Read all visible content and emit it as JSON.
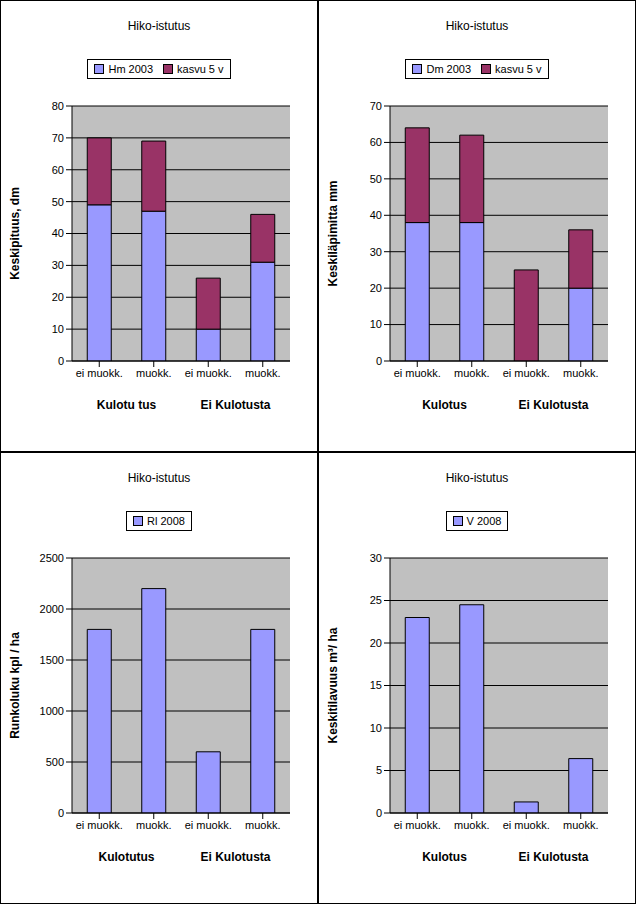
{
  "chart_data": [
    {
      "type": "bar",
      "title": "Hiko-istutus",
      "categories": [
        "ei muokk.",
        "muokk.",
        "ei muokk.",
        "muokk."
      ],
      "category_groups": [
        "Kulotu tus",
        "Ei Kulotusta"
      ],
      "ylabel": "Keskipituus, dm",
      "ylim": [
        0,
        80
      ],
      "yticks": [
        0,
        10,
        20,
        30,
        40,
        50,
        60,
        70,
        80
      ],
      "stacked": true,
      "grid": true,
      "legend": "top",
      "series": [
        {
          "name": "Hm 2003",
          "color": "#9999FF",
          "values": [
            49,
            47,
            10,
            31
          ]
        },
        {
          "name": "kasvu 5 v",
          "color": "#993366",
          "values": [
            21,
            22,
            16,
            15
          ]
        }
      ]
    },
    {
      "type": "bar",
      "title": "Hiko-istutus",
      "categories": [
        "ei muokk.",
        "muokk.",
        "ei muokk.",
        "muokk."
      ],
      "category_groups": [
        "Kulotus",
        "Ei Kulotusta"
      ],
      "ylabel": "Keskiläpimitta mm",
      "ylim": [
        0,
        70
      ],
      "yticks": [
        0,
        10,
        20,
        30,
        40,
        50,
        60,
        70
      ],
      "stacked": true,
      "grid": true,
      "legend": "top",
      "series": [
        {
          "name": "Dm 2003",
          "color": "#9999FF",
          "values": [
            38,
            38,
            0,
            20
          ]
        },
        {
          "name": "kasvu 5 v",
          "color": "#993366",
          "values": [
            26,
            24,
            25,
            16
          ]
        }
      ]
    },
    {
      "type": "bar",
      "title": "Hiko-istutus",
      "categories": [
        "ei muokk.",
        "muokk.",
        "ei muokk.",
        "muokk."
      ],
      "category_groups": [
        "Kulotutus",
        "Ei Kulotusta"
      ],
      "ylabel": "Runkoluku kpl / ha",
      "ylim": [
        0,
        2500
      ],
      "yticks": [
        0,
        500,
        1000,
        1500,
        2000,
        2500
      ],
      "stacked": false,
      "grid": true,
      "legend": "top",
      "series": [
        {
          "name": "Rl 2008",
          "color": "#9999FF",
          "values": [
            1800,
            2200,
            600,
            1800
          ]
        }
      ]
    },
    {
      "type": "bar",
      "title": "Hiko-istutus",
      "categories": [
        "ei muokk.",
        "muokk.",
        "ei muokk.",
        "muokk."
      ],
      "category_groups": [
        "Kulotus",
        "Ei Kulotusta"
      ],
      "ylabel": "Keskitilavuus m³/ ha",
      "ylim": [
        0,
        30
      ],
      "yticks": [
        0,
        5,
        10,
        15,
        20,
        25,
        30
      ],
      "stacked": false,
      "grid": true,
      "legend": "top",
      "series": [
        {
          "name": "V 2008",
          "color": "#9999FF",
          "values": [
            23,
            24.5,
            1.3,
            6.4
          ]
        }
      ]
    }
  ]
}
